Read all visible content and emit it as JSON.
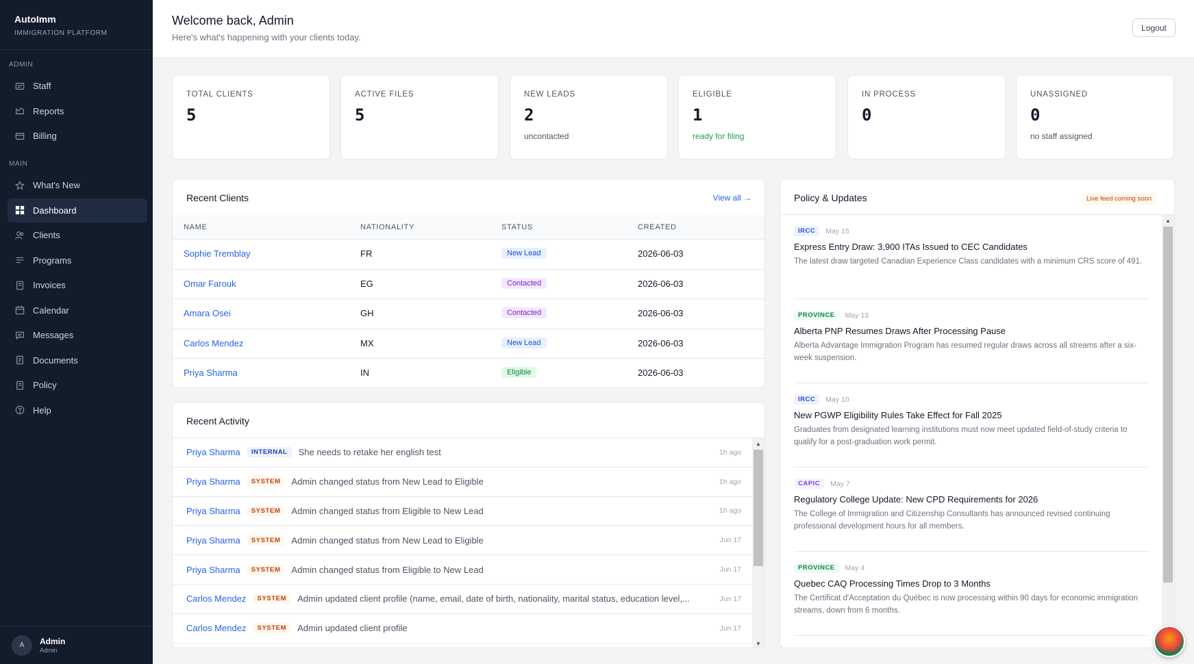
{
  "app": {
    "name": "AutoImm",
    "subtitle": "IMMIGRATION PLATFORM"
  },
  "sidebar": {
    "admin_label": "ADMIN",
    "admin_items": [
      {
        "label": "Staff",
        "icon": "staff-icon"
      },
      {
        "label": "Reports",
        "icon": "reports-icon"
      },
      {
        "label": "Billing",
        "icon": "billing-icon"
      }
    ],
    "main_label": "MAIN",
    "main_items": [
      {
        "label": "What's New",
        "icon": "star-icon"
      },
      {
        "label": "Dashboard",
        "icon": "dashboard-icon",
        "active": true
      },
      {
        "label": "Clients",
        "icon": "clients-icon"
      },
      {
        "label": "Programs",
        "icon": "programs-icon"
      },
      {
        "label": "Invoices",
        "icon": "invoices-icon"
      },
      {
        "label": "Calendar",
        "icon": "calendar-icon"
      },
      {
        "label": "Messages",
        "icon": "messages-icon"
      },
      {
        "label": "Documents",
        "icon": "documents-icon"
      },
      {
        "label": "Policy",
        "icon": "policy-icon"
      },
      {
        "label": "Help",
        "icon": "help-icon"
      }
    ],
    "user": {
      "initial": "A",
      "name": "Admin",
      "role": "Admin"
    }
  },
  "header": {
    "title": "Welcome back, Admin",
    "subtitle": "Here's what's happening with your clients today.",
    "logout_label": "Logout"
  },
  "stats": [
    {
      "label": "TOTAL CLIENTS",
      "value": "5",
      "sub": ""
    },
    {
      "label": "ACTIVE FILES",
      "value": "5",
      "sub": ""
    },
    {
      "label": "NEW LEADS",
      "value": "2",
      "sub": "uncontacted"
    },
    {
      "label": "ELIGIBLE",
      "value": "1",
      "sub": "ready for filing"
    },
    {
      "label": "IN PROCESS",
      "value": "0",
      "sub": ""
    },
    {
      "label": "UNASSIGNED",
      "value": "0",
      "sub": "no staff assigned"
    }
  ],
  "recent_clients": {
    "title": "Recent Clients",
    "view_all": "View all →",
    "columns": [
      "NAME",
      "NATIONALITY",
      "STATUS",
      "CREATED"
    ],
    "rows": [
      {
        "name": "Sophie Tremblay",
        "nationality": "FR",
        "status": "New Lead",
        "created": "2026-06-03"
      },
      {
        "name": "Omar Farouk",
        "nationality": "EG",
        "status": "Contacted",
        "created": "2026-06-03"
      },
      {
        "name": "Amara Osei",
        "nationality": "GH",
        "status": "Contacted",
        "created": "2026-06-03"
      },
      {
        "name": "Carlos Mendez",
        "nationality": "MX",
        "status": "New Lead",
        "created": "2026-06-03"
      },
      {
        "name": "Priya Sharma",
        "nationality": "IN",
        "status": "Eligible",
        "created": "2026-06-03"
      }
    ]
  },
  "activity": {
    "title": "Recent Activity",
    "items": [
      {
        "client": "Priya Sharma",
        "tag": "INTERNAL",
        "text": "She needs to retake her english test",
        "time": "1h ago"
      },
      {
        "client": "Priya Sharma",
        "tag": "SYSTEM",
        "text": "Admin changed status from New Lead to Eligible",
        "time": "1h ago"
      },
      {
        "client": "Priya Sharma",
        "tag": "SYSTEM",
        "text": "Admin changed status from Eligible to New Lead",
        "time": "1h ago"
      },
      {
        "client": "Priya Sharma",
        "tag": "SYSTEM",
        "text": "Admin changed status from New Lead to Eligible",
        "time": "Jun 17"
      },
      {
        "client": "Priya Sharma",
        "tag": "SYSTEM",
        "text": "Admin changed status from Eligible to New Lead",
        "time": "Jun 17"
      },
      {
        "client": "Carlos Mendez",
        "tag": "SYSTEM",
        "text": "Admin updated client profile (name, email, date of birth, nationality, marital status, education level,...",
        "time": "Jun 17"
      },
      {
        "client": "Carlos Mendez",
        "tag": "SYSTEM",
        "text": "Admin updated client profile",
        "time": "Jun 17"
      }
    ]
  },
  "policy": {
    "title": "Policy & Updates",
    "badge": "Live feed coming soon",
    "items": [
      {
        "tag": "IRCC",
        "date": "May 15",
        "title": "Express Entry Draw: 3,900 ITAs Issued to CEC Candidates",
        "body": "The latest draw targeted Canadian Experience Class candidates with a minimum CRS score of 491."
      },
      {
        "tag": "PROVINCE",
        "date": "May 13",
        "title": "Alberta PNP Resumes Draws After Processing Pause",
        "body": "Alberta Advantage Immigration Program has resumed regular draws across all streams after a six-week suspension."
      },
      {
        "tag": "IRCC",
        "date": "May 10",
        "title": "New PGWP Eligibility Rules Take Effect for Fall 2025",
        "body": "Graduates from designated learning institutions must now meet updated field-of-study criteria to qualify for a post-graduation work permit."
      },
      {
        "tag": "CAPIC",
        "date": "May 7",
        "title": "Regulatory College Update: New CPD Requirements for 2026",
        "body": "The College of Immigration and Citizenship Consultants has announced revised continuing professional development hours for all members."
      },
      {
        "tag": "PROVINCE",
        "date": "May 4",
        "title": "Quebec CAQ Processing Times Drop to 3 Months",
        "body": "The Certificat d'Acceptation du Québec is now processing within 90 days for economic immigration streams, down from 6 months."
      }
    ]
  },
  "colors": {
    "sidebar_bg": "#131c2b",
    "link": "#2563eb",
    "eligible_green": "#16a34a",
    "system_tag": "#c2410c"
  }
}
